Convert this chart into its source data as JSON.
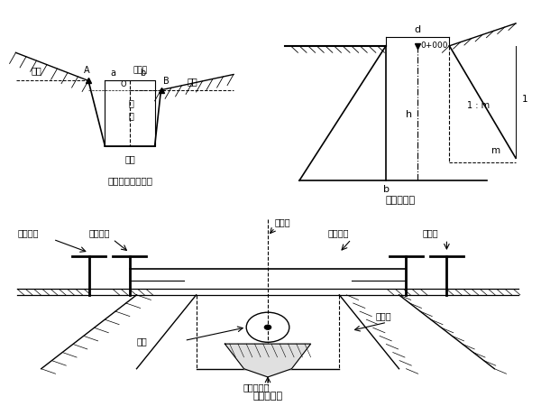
{
  "bg_color": "#ffffff",
  "title1": "横断面测设示置图",
  "title2": "开槽断面图",
  "title3": "坡度框设置",
  "fig_size": [
    6.0,
    4.5
  ],
  "dpi": 100
}
